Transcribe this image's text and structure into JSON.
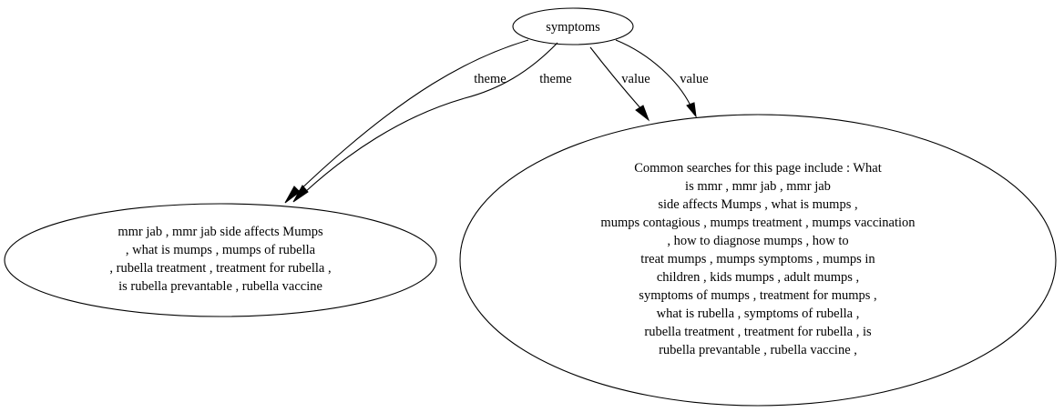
{
  "nodes": {
    "symptoms": {
      "label": "symptoms"
    },
    "theme_target": {
      "lines": [
        "mmr jab , mmr jab side affects Mumps",
        ", what is mumps , mumps of rubella",
        ", rubella treatment , treatment for rubella ,",
        "is rubella prevantable , rubella vaccine"
      ]
    },
    "value_target": {
      "lines": [
        "Common searches for this page include : What",
        "is mmr , mmr jab , mmr jab",
        "side affects Mumps , what is mumps ,",
        "mumps contagious , mumps treatment , mumps vaccination",
        ", how to diagnose mumps , how to",
        "treat mumps , mumps symptoms , mumps in",
        "children , kids mumps , adult mumps ,",
        "symptoms of mumps , treatment for mumps ,",
        "what is rubella , symptoms of rubella ,",
        "rubella treatment , treatment for rubella , is",
        "rubella prevantable , rubella vaccine ,"
      ]
    }
  },
  "edges": [
    {
      "label": "theme"
    },
    {
      "label": "theme"
    },
    {
      "label": "value"
    },
    {
      "label": "value"
    }
  ]
}
